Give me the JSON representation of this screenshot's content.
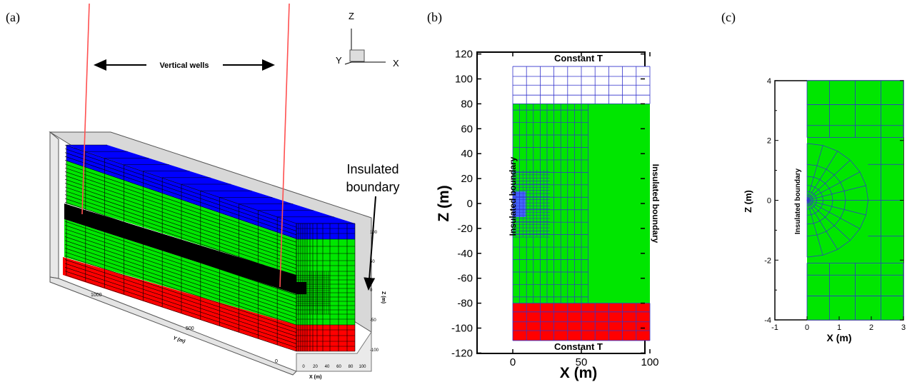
{
  "panels": [
    {
      "label": "(a)"
    },
    {
      "label": "(b)"
    },
    {
      "label": "(c)"
    }
  ],
  "panel_a": {
    "wells_label": "Vertical wells",
    "boundary_label_1": "Insulated",
    "boundary_label_2": "boundary",
    "triad": {
      "z": "Z",
      "y": "Y",
      "x": "X"
    },
    "y_axis_title": "Y (m)",
    "y_ticks": [
      "1000",
      "500",
      "0"
    ],
    "x_axis_title": "X (m)",
    "x_ticks": [
      "0",
      "20",
      "40",
      "60",
      "80",
      "100"
    ],
    "z_axis_title": "Z (m)",
    "z_ticks": [
      "100",
      "50",
      "0",
      "-50",
      "-100"
    ],
    "colors": {
      "caprock": "#0000ff",
      "aquifer": "#00e600",
      "well_layer": "#000000",
      "bedrock": "#ff0000",
      "well": "#ff3333"
    }
  },
  "panel_b": {
    "top_label": "Constant T",
    "bottom_label": "Constant T",
    "left_label": "Insulated boundary",
    "right_label": "Insulated boundary",
    "y_axis_title": "Z (m)",
    "x_axis_title": "X (m)",
    "y_ticks": [
      "120",
      "100",
      "80",
      "60",
      "40",
      "20",
      "0",
      "-20",
      "-40",
      "-60",
      "-80",
      "-100",
      "-120"
    ],
    "x_ticks": [
      "0",
      "50",
      "100"
    ],
    "colors": {
      "caprock": "#ffffff",
      "aquifer": "#00e600",
      "bedrock": "#ff0000",
      "grid": "#3333cc",
      "fracture": "#4466ff"
    }
  },
  "panel_c": {
    "boundary_label": "Insulated boundary",
    "y_axis_title": "Z (m)",
    "x_axis_title": "X (m)",
    "y_ticks": [
      "4",
      "2",
      "0",
      "-2",
      "-4"
    ],
    "x_ticks": [
      "-1",
      "0",
      "1",
      "2",
      "3"
    ],
    "colors": {
      "aquifer": "#00e600",
      "grid": "#3333cc"
    }
  }
}
